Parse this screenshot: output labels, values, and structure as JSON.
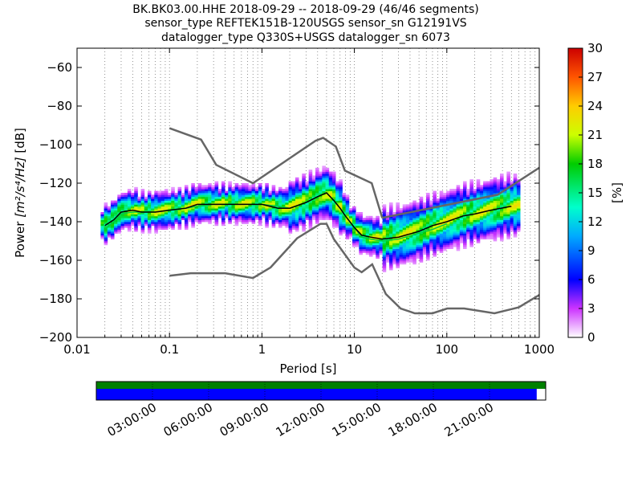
{
  "chart_data": {
    "type": "heatmap",
    "title_lines": [
      "BK.BK03.00.HHE   2018-09-29 -- 2018-09-29  (46/46 segments)",
      "sensor_type REFTEK151B-120USGS sensor_sn G12191VS",
      "datalogger_type Q330S+USGS datalogger_sn 6073"
    ],
    "xlabel": "Period [s]",
    "ylabel_prefix": "Power ",
    "ylabel_units": "[m²/s⁴/Hz]",
    "ylabel_suffix": " [dB]",
    "x_scale": "log",
    "xlim": [
      0.01,
      1000
    ],
    "ylim": [
      -200,
      -50
    ],
    "xticks": [
      0.01,
      0.1,
      1,
      10,
      100,
      1000
    ],
    "xtick_labels": [
      "0.01",
      "0.1",
      "1",
      "10",
      "100",
      "1000"
    ],
    "yticks": [
      -200,
      -180,
      -160,
      -140,
      -120,
      -100,
      -80,
      -60
    ],
    "ytick_labels": [
      "−200",
      "−180",
      "−160",
      "−140",
      "−120",
      "−100",
      "−80",
      "−60"
    ],
    "grid": "dotted vertical lines at log subdivisions",
    "colorbar": {
      "label": "[%]",
      "min": 0,
      "max": 30,
      "ticks": [
        0,
        3,
        6,
        9,
        12,
        15,
        18,
        21,
        24,
        27,
        30
      ],
      "tick_labels": [
        "0",
        "3",
        "6",
        "9",
        "12",
        "15",
        "18",
        "21",
        "24",
        "27",
        "30"
      ],
      "colormap": "pqlx"
    },
    "psd_mode": {
      "name": "mode",
      "color": "#000000",
      "x": [
        0.02,
        0.025,
        0.03,
        0.04,
        0.05,
        0.07,
        0.1,
        0.15,
        0.2,
        0.3,
        0.5,
        0.7,
        1,
        1.5,
        2,
        3,
        4,
        5,
        6,
        7,
        8,
        10,
        12,
        15,
        20,
        30,
        50,
        70,
        100,
        150,
        200,
        300,
        500
      ],
      "y": [
        -142,
        -139,
        -135,
        -134,
        -135,
        -135,
        -134,
        -133,
        -131,
        -131,
        -131,
        -131,
        -131,
        -133,
        -133,
        -130,
        -127,
        -125,
        -129,
        -133,
        -137,
        -143,
        -147,
        -148,
        -149,
        -148,
        -145,
        -142,
        -140,
        -137,
        -136,
        -134,
        -132
      ]
    },
    "psd_mean": {
      "name": "mean",
      "color": "#00cc44",
      "x": [
        0.02,
        0.025,
        0.03,
        0.04,
        0.05,
        0.07,
        0.1,
        0.15,
        0.2,
        0.3,
        0.5,
        0.7,
        1,
        1.5,
        2,
        3,
        4,
        5,
        6,
        7,
        8,
        10,
        12,
        15,
        20,
        30,
        50,
        70,
        100
      ],
      "y": [
        -144,
        -140,
        -136,
        -135,
        -135,
        -135,
        -134,
        -133,
        -132,
        -131,
        -131,
        -131,
        -131,
        -132,
        -133,
        -130,
        -127,
        -125,
        -129,
        -133,
        -137,
        -143,
        -148,
        -149,
        -150,
        -149,
        -146,
        -144,
        -141
      ]
    },
    "nhnm": {
      "name": "NHNM",
      "color": "#666666",
      "x": [
        0.1,
        0.22,
        0.32,
        0.8,
        3.8,
        4.6,
        6.3,
        7.9,
        15.4,
        20
      ],
      "y": [
        -91.5,
        -97.4,
        -110.5,
        -120,
        -98,
        -96.5,
        -101,
        -113.5,
        -120,
        -138
      ],
      "x2": [
        20,
        354.8,
        1000
      ],
      "y2": [
        -138,
        -126,
        -112
      ]
    },
    "nlnm": {
      "name": "NLNM",
      "color": "#666666",
      "x": [
        0.1,
        0.17,
        0.4,
        0.8,
        1.24,
        2.4,
        4.3,
        5,
        6,
        10,
        12,
        15.6,
        21.9,
        31.6,
        45,
        70,
        101,
        154,
        328,
        600,
        1000
      ],
      "y": [
        -168,
        -166.7,
        -166.7,
        -169.2,
        -163.7,
        -148.6,
        -141.1,
        -141.1,
        -149,
        -163.8,
        -166.2,
        -162.1,
        -177.5,
        -185,
        -187.5,
        -187.5,
        -185,
        -185,
        -187.5,
        -184.4,
        -178
      ]
    },
    "data_coverage": {
      "time_tick_labels": [
        "03:00:00",
        "06:00:00",
        "09:00:00",
        "12:00:00",
        "15:00:00",
        "18:00:00",
        "21:00:00"
      ],
      "total_fraction": 1.0,
      "segments_fraction": 0.98,
      "total_color": "#008000",
      "segments_color": "#0000ff"
    }
  }
}
